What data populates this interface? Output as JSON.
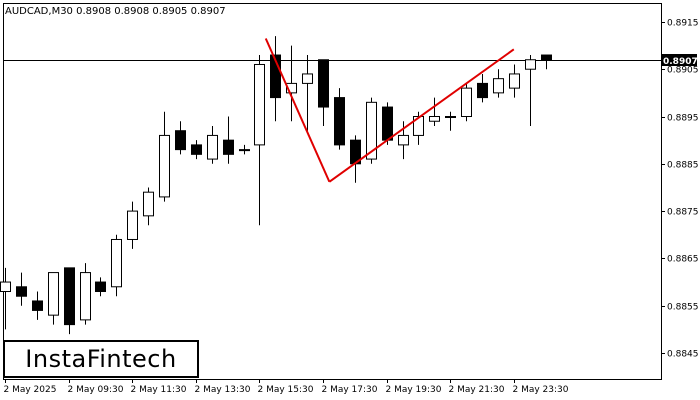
{
  "chart_data": {
    "type": "candlestick",
    "title": "AUDCAD,M30  0.8908 0.8908 0.8905 0.8907",
    "symbol": "AUDCAD",
    "timeframe": "M30",
    "last_price": "0.8907",
    "ylim": [
      0.88395,
      0.8919
    ],
    "y_ticks": [
      "0.8915",
      "0.8905",
      "0.8895",
      "0.8885",
      "0.8875",
      "0.8865",
      "0.8855",
      "0.8845"
    ],
    "x_ticks": [
      {
        "label": "2 May 2025",
        "index": 0
      },
      {
        "label": "2 May 09:30",
        "index": 4
      },
      {
        "label": "2 May 11:30",
        "index": 8
      },
      {
        "label": "2 May 13:30",
        "index": 12
      },
      {
        "label": "2 May 15:30",
        "index": 16
      },
      {
        "label": "2 May 17:30",
        "index": 20
      },
      {
        "label": "2 May 19:30",
        "index": 24
      },
      {
        "label": "2 May 21:30",
        "index": 28
      },
      {
        "label": "2 May 23:30",
        "index": 32
      }
    ],
    "candles": [
      {
        "o": 0.8858,
        "h": 0.8863,
        "l": 0.885,
        "c": 0.886
      },
      {
        "o": 0.8859,
        "h": 0.8862,
        "l": 0.8855,
        "c": 0.8857
      },
      {
        "o": 0.8856,
        "h": 0.8858,
        "l": 0.8852,
        "c": 0.8854
      },
      {
        "o": 0.8853,
        "h": 0.8862,
        "l": 0.8851,
        "c": 0.8862
      },
      {
        "o": 0.8863,
        "h": 0.8863,
        "l": 0.8849,
        "c": 0.8851
      },
      {
        "o": 0.8852,
        "h": 0.8864,
        "l": 0.8851,
        "c": 0.8862
      },
      {
        "o": 0.886,
        "h": 0.8861,
        "l": 0.8857,
        "c": 0.8858
      },
      {
        "o": 0.8859,
        "h": 0.887,
        "l": 0.8857,
        "c": 0.8869
      },
      {
        "o": 0.8869,
        "h": 0.8877,
        "l": 0.8867,
        "c": 0.8875
      },
      {
        "o": 0.8874,
        "h": 0.888,
        "l": 0.8872,
        "c": 0.8879
      },
      {
        "o": 0.8878,
        "h": 0.8896,
        "l": 0.8877,
        "c": 0.8891
      },
      {
        "o": 0.8892,
        "h": 0.8894,
        "l": 0.8887,
        "c": 0.8888
      },
      {
        "o": 0.8889,
        "h": 0.889,
        "l": 0.8886,
        "c": 0.8887
      },
      {
        "o": 0.8886,
        "h": 0.8893,
        "l": 0.8885,
        "c": 0.8891
      },
      {
        "o": 0.889,
        "h": 0.8895,
        "l": 0.8885,
        "c": 0.8887
      },
      {
        "o": 0.8888,
        "h": 0.8889,
        "l": 0.8887,
        "c": 0.8888
      },
      {
        "o": 0.8889,
        "h": 0.8908,
        "l": 0.8872,
        "c": 0.8906
      },
      {
        "o": 0.8908,
        "h": 0.8912,
        "l": 0.8894,
        "c": 0.8899
      },
      {
        "o": 0.89,
        "h": 0.891,
        "l": 0.8894,
        "c": 0.8902
      },
      {
        "o": 0.8902,
        "h": 0.8908,
        "l": 0.8892,
        "c": 0.8904
      },
      {
        "o": 0.8907,
        "h": 0.8907,
        "l": 0.8893,
        "c": 0.8897
      },
      {
        "o": 0.8899,
        "h": 0.8901,
        "l": 0.8888,
        "c": 0.8889
      },
      {
        "o": 0.889,
        "h": 0.8891,
        "l": 0.8881,
        "c": 0.8885
      },
      {
        "o": 0.8886,
        "h": 0.8899,
        "l": 0.8885,
        "c": 0.8898
      },
      {
        "o": 0.8897,
        "h": 0.8898,
        "l": 0.8889,
        "c": 0.889
      },
      {
        "o": 0.8889,
        "h": 0.8894,
        "l": 0.8886,
        "c": 0.8891
      },
      {
        "o": 0.8891,
        "h": 0.8896,
        "l": 0.8889,
        "c": 0.8895
      },
      {
        "o": 0.8894,
        "h": 0.8899,
        "l": 0.8893,
        "c": 0.8895
      },
      {
        "o": 0.8895,
        "h": 0.8896,
        "l": 0.8892,
        "c": 0.8895
      },
      {
        "o": 0.8895,
        "h": 0.8902,
        "l": 0.8894,
        "c": 0.8901
      },
      {
        "o": 0.8902,
        "h": 0.8904,
        "l": 0.8898,
        "c": 0.8899
      },
      {
        "o": 0.89,
        "h": 0.8905,
        "l": 0.8899,
        "c": 0.8903
      },
      {
        "o": 0.8901,
        "h": 0.8906,
        "l": 0.8899,
        "c": 0.8904
      },
      {
        "o": 0.8905,
        "h": 0.8908,
        "l": 0.8893,
        "c": 0.8907
      },
      {
        "o": 0.8908,
        "h": 0.8908,
        "l": 0.8905,
        "c": 0.8907
      }
    ],
    "pattern_lines": [
      {
        "from": {
          "index": 16.4,
          "price": 0.89115
        },
        "to": {
          "index": 20.4,
          "price": 0.88812
        }
      },
      {
        "from": {
          "index": 20.4,
          "price": 0.88812
        },
        "to": {
          "index": 32.0,
          "price": 0.89092
        }
      }
    ],
    "colors": {
      "bull_fill": "#ffffff",
      "bear_fill": "#000000",
      "outline": "#000000",
      "pattern_line": "#e00000",
      "price_tag_bg": "#000000",
      "price_tag_text": "#ffffff"
    }
  },
  "brand": {
    "logo_text": "InstaFintech"
  }
}
